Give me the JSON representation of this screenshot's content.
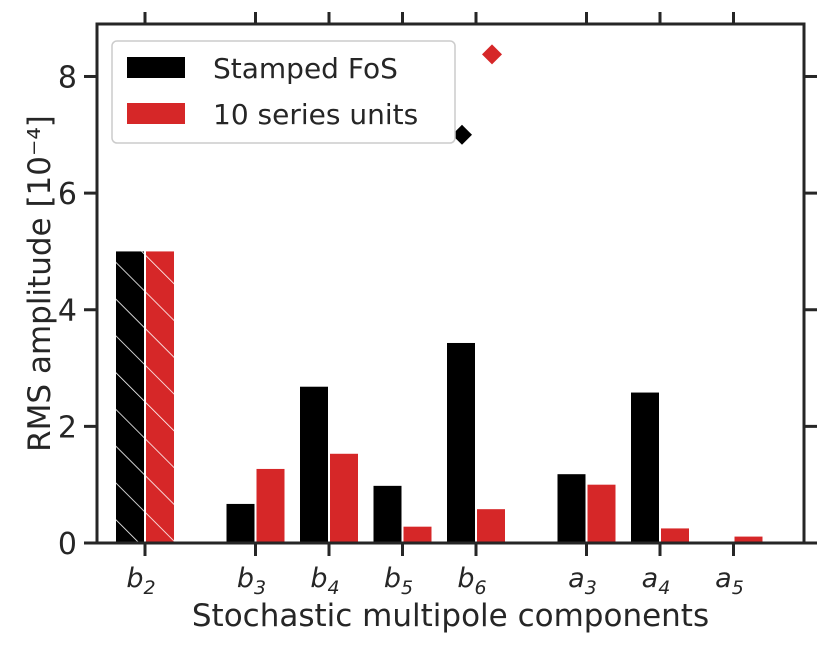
{
  "chart_data": {
    "type": "bar",
    "xlabel": "Stochastic multipole components",
    "ylabel": "RMS amplitude [10⁻⁴]",
    "ylim": [
      0,
      8.9
    ],
    "yticks": [
      "0",
      "2",
      "4",
      "6",
      "8"
    ],
    "ytick_values": [
      0,
      2,
      4,
      6,
      8
    ],
    "grid": false,
    "legend_placement": "top-left",
    "categories": [
      {
        "base": "b",
        "sub": "2",
        "group": 0
      },
      {
        "base": "b",
        "sub": "3",
        "group": 1
      },
      {
        "base": "b",
        "sub": "4",
        "group": 1
      },
      {
        "base": "b",
        "sub": "5",
        "group": 1
      },
      {
        "base": "b",
        "sub": "6",
        "group": 1
      },
      {
        "base": "a",
        "sub": "3",
        "group": 2
      },
      {
        "base": "a",
        "sub": "4",
        "group": 2
      },
      {
        "base": "a",
        "sub": "5",
        "group": 2
      }
    ],
    "series": [
      {
        "name": "Stamped FoS",
        "color": "#000000",
        "values": [
          5.0,
          0.67,
          2.68,
          0.98,
          3.43,
          1.18,
          2.58,
          0.0
        ],
        "hatched": [
          true,
          false,
          false,
          false,
          false,
          false,
          false,
          false
        ],
        "outlier": {
          "category_index": 4,
          "value": 7.0,
          "marker": "diamond"
        }
      },
      {
        "name": "10 series units",
        "color": "#d62728",
        "values": [
          5.0,
          1.27,
          1.53,
          0.28,
          0.58,
          1.0,
          0.25,
          0.11
        ],
        "hatched": [
          true,
          false,
          false,
          false,
          false,
          false,
          false,
          false
        ],
        "outlier": {
          "category_index": 4,
          "value": 8.38,
          "marker": "diamond"
        }
      }
    ]
  }
}
